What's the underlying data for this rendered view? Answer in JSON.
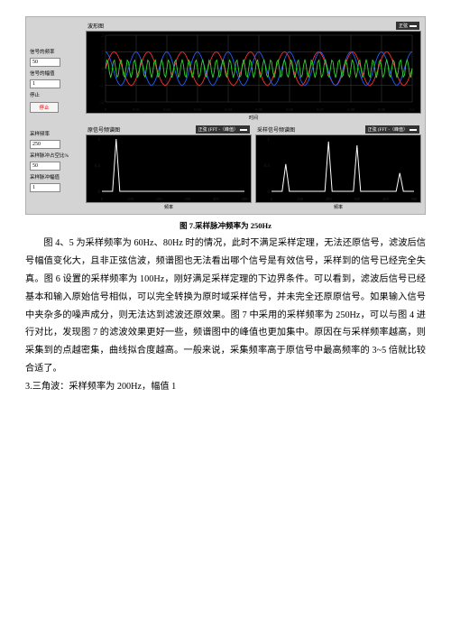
{
  "vi": {
    "controls_top": {
      "freq_label": "信号的频率",
      "freq_value": "50",
      "amp_label": "信号的幅值",
      "amp_value": "1",
      "stop_label": "停止",
      "stop_button": "停止"
    },
    "controls_bottom": {
      "sample_freq_label": "采样频率",
      "sample_freq_value": "250",
      "duty_label": "采样脉冲占空比%",
      "duty_value": "50",
      "pulse_amp_label": "采样脉冲幅值",
      "pulse_amp_value": "1"
    },
    "waveform": {
      "title": "波形图",
      "legend_label": "正弦",
      "curves": [
        {
          "color": "#ff3030",
          "amp": 1.0,
          "freq": 9,
          "phase": 0.0
        },
        {
          "color": "#2060ff",
          "amp": 1.0,
          "freq": 10,
          "phase": 1.6
        },
        {
          "color": "#30d030",
          "amp": 0.55,
          "freq": 45,
          "phase": 0.0
        }
      ],
      "ylim": [
        -2,
        2
      ],
      "yticks": [
        -2,
        -1,
        0,
        1,
        2
      ],
      "xlim": [
        0,
        0.1
      ],
      "xticks": [
        "0",
        "0.01",
        "0.02",
        "0.03",
        "0.04",
        "0.05",
        "0.06",
        "0.07",
        "0.08",
        "0.09",
        "0.1"
      ],
      "xlabel": "时间",
      "plot_bg": "#000000",
      "grid_color": "#404040"
    },
    "fft_left": {
      "title": "原信号频谱图",
      "legend_label": "正弦 (FFT -（峰值）",
      "peaks": [
        {
          "x": 50,
          "h": 1.0
        }
      ],
      "ylim": [
        0,
        1
      ],
      "yticks": [
        "0",
        "0.5",
        "1"
      ],
      "xlim": [
        0,
        500
      ],
      "xticks": [
        "0",
        "100",
        "200",
        "300",
        "400",
        "500"
      ],
      "xlabel": "频率",
      "line_color": "#ffffff",
      "plot_bg": "#000000"
    },
    "fft_right": {
      "title": "采样信号频谱图",
      "legend_label": "正弦 (FFT -（峰值）",
      "peaks": [
        {
          "x": 50,
          "h": 0.52
        },
        {
          "x": 200,
          "h": 0.95
        },
        {
          "x": 300,
          "h": 0.88
        },
        {
          "x": 450,
          "h": 0.35
        }
      ],
      "ylim": [
        0,
        1
      ],
      "yticks": [
        "0",
        "0.5",
        "1"
      ],
      "xlim": [
        0,
        500
      ],
      "xticks": [
        "0",
        "100",
        "200",
        "300",
        "400",
        "500"
      ],
      "xlabel": "频率",
      "line_color": "#ffffff",
      "plot_bg": "#000000"
    }
  },
  "caption": "图 7.采样脉冲频率为 250Hz",
  "paragraphs": [
    "图 4、5 为采样频率为 60Hz、80Hz 时的情况，此时不满足采样定理，无法还原信号，滤波后信号幅值变化大，且非正弦信波，频谱图也无法看出哪个信号是有效信号，采样到的信号已经完全失真。图 6 设置的采样频率为 100Hz，刚好满足采样定理的下边界条件。可以看到，滤波后信号已经基本和输入原始信号相似，可以完全转换为原时域采样信号，并未完全还原原信号。如果输入信号中夹杂多的噪声成分，则无法达到滤波还原效果。图 7 中采用的采样频率为 250Hz，可以与图 4 进行对比，发现图 7 的滤波效果更好一些，频谱图中的峰值也更加集中。原因在与采样频率越高，则采集到的点越密集，曲线拟合度越高。一般来说，采集频率高于原信号中最高频率的 3~5 倍就比较合适了。"
  ],
  "tail_line": "3.三角波：采样频率为 200Hz，幅值 1"
}
